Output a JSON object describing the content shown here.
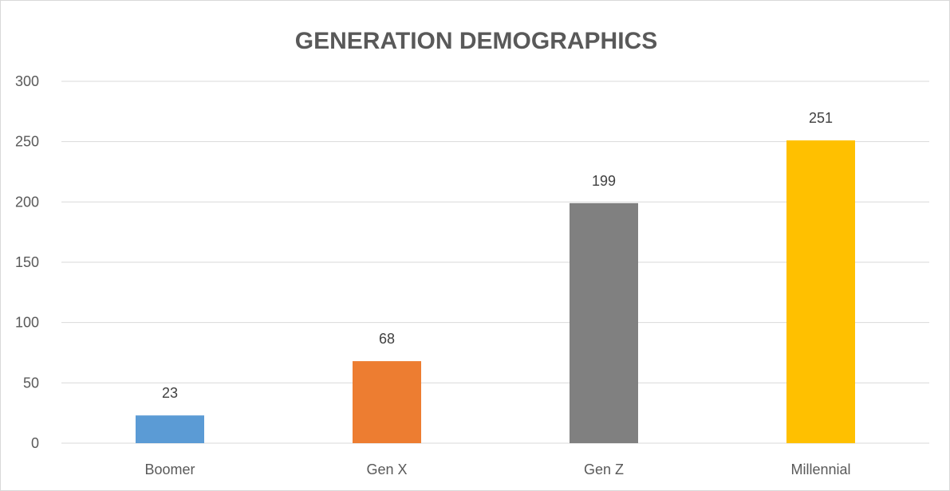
{
  "chart_data": {
    "type": "bar",
    "title": "GENERATION DEMOGRAPHICS",
    "xlabel": "",
    "ylabel": "",
    "categories": [
      "Boomer",
      "Gen X",
      "Gen Z",
      "Millennial"
    ],
    "values": [
      23,
      68,
      199,
      251
    ],
    "colors": [
      "#5B9BD5",
      "#ED7D31",
      "#808080",
      "#FFC000"
    ],
    "ylim": [
      0,
      300
    ],
    "yticks": [
      0,
      50,
      100,
      150,
      200,
      250,
      300
    ],
    "grid": true,
    "legend": "none",
    "data_labels": true
  }
}
